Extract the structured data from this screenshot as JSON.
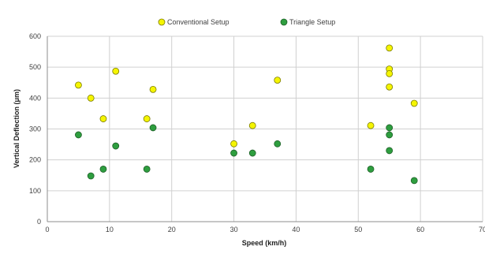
{
  "chart_data": {
    "type": "scatter",
    "xlabel": "Speed (km/h)",
    "ylabel": "Vertical Deflection (μm)",
    "xlim": [
      0,
      70
    ],
    "ylim": [
      0,
      600
    ],
    "xticks": [
      "0",
      "10",
      "20",
      "30",
      "40",
      "50",
      "60",
      "70"
    ],
    "yticks": [
      "0",
      "100",
      "200",
      "300",
      "400",
      "500",
      "600"
    ],
    "grid": true,
    "legend_position": "top-center",
    "series": [
      {
        "name": "Conventional Setup",
        "color": "#f5f500",
        "points": [
          [
            5,
            442
          ],
          [
            7,
            400
          ],
          [
            9,
            333
          ],
          [
            11,
            487
          ],
          [
            16,
            333
          ],
          [
            17,
            428
          ],
          [
            30,
            252
          ],
          [
            33,
            311
          ],
          [
            37,
            458
          ],
          [
            52,
            311
          ],
          [
            55,
            562
          ],
          [
            55,
            494
          ],
          [
            55,
            479
          ],
          [
            55,
            436
          ],
          [
            59,
            383
          ]
        ]
      },
      {
        "name": "Triangle Setup",
        "color": "#2e9e3f",
        "points": [
          [
            5,
            281
          ],
          [
            7,
            148
          ],
          [
            9,
            170
          ],
          [
            11,
            245
          ],
          [
            16,
            170
          ],
          [
            17,
            304
          ],
          [
            30,
            222
          ],
          [
            33,
            222
          ],
          [
            37,
            252
          ],
          [
            52,
            170
          ],
          [
            55,
            304
          ],
          [
            55,
            281
          ],
          [
            55,
            230
          ],
          [
            59,
            133
          ]
        ]
      }
    ]
  }
}
